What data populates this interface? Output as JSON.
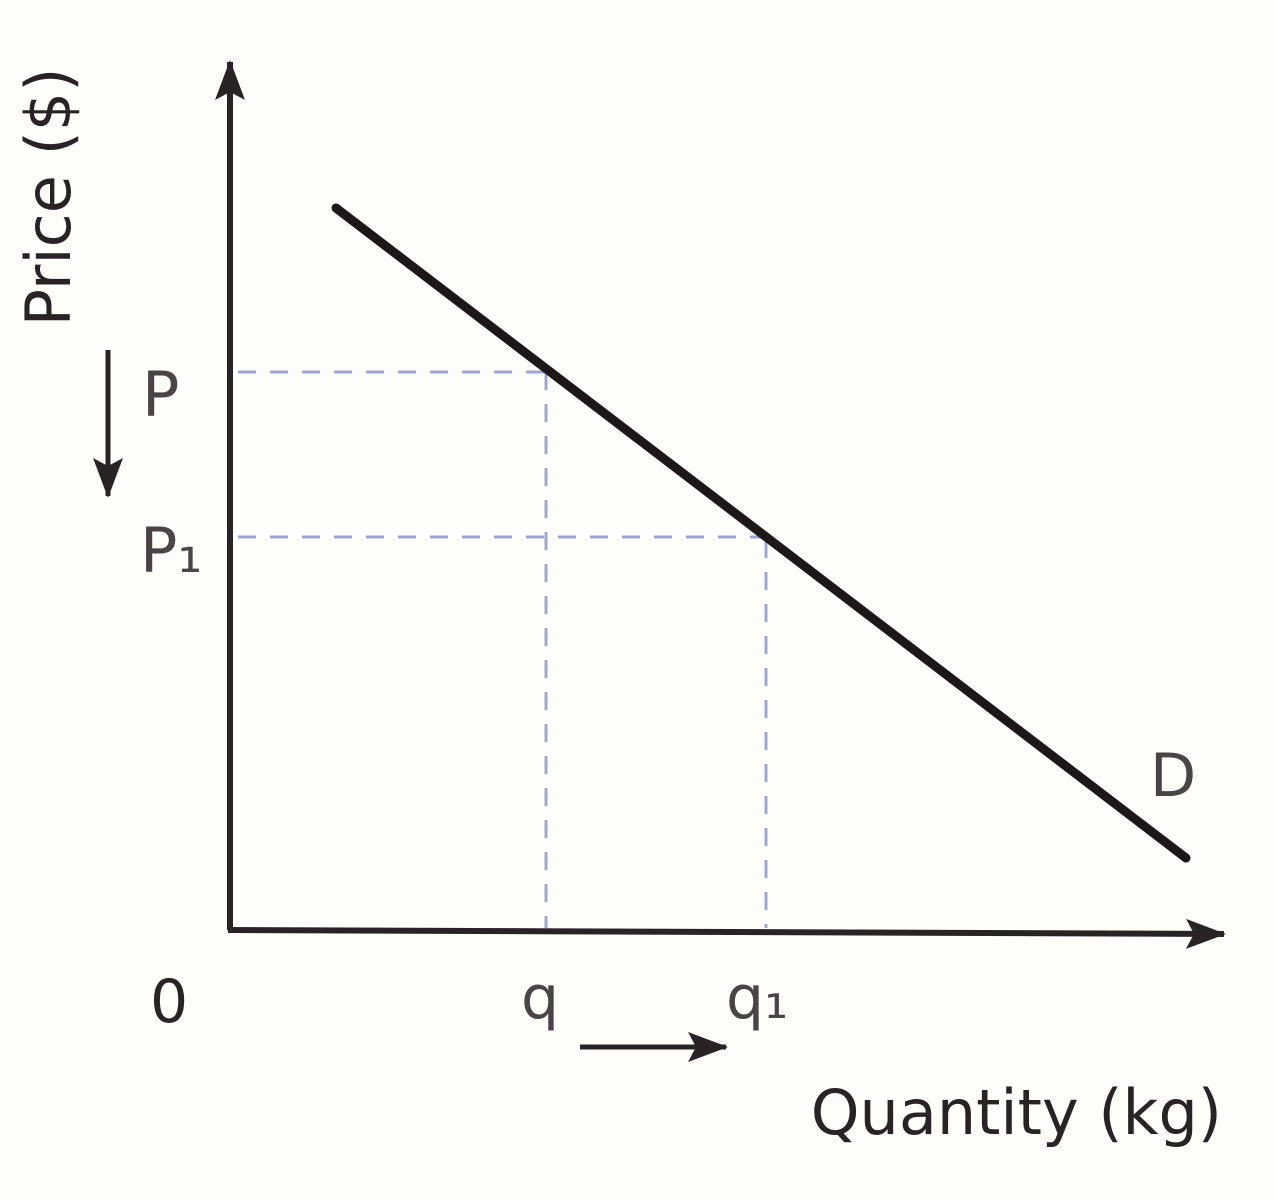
{
  "diagram": {
    "y_axis_label": "Price ($)",
    "x_axis_label": "Quantity (kg)",
    "origin_label": "0",
    "price_labels": [
      "P",
      "P₁"
    ],
    "quantity_labels": [
      "q",
      "q₁"
    ],
    "curve_label": "D",
    "colors": {
      "line": "#1e1718",
      "axis": "#2a2326",
      "guide": "#9aa6d8",
      "background": "#fffefb"
    }
  }
}
